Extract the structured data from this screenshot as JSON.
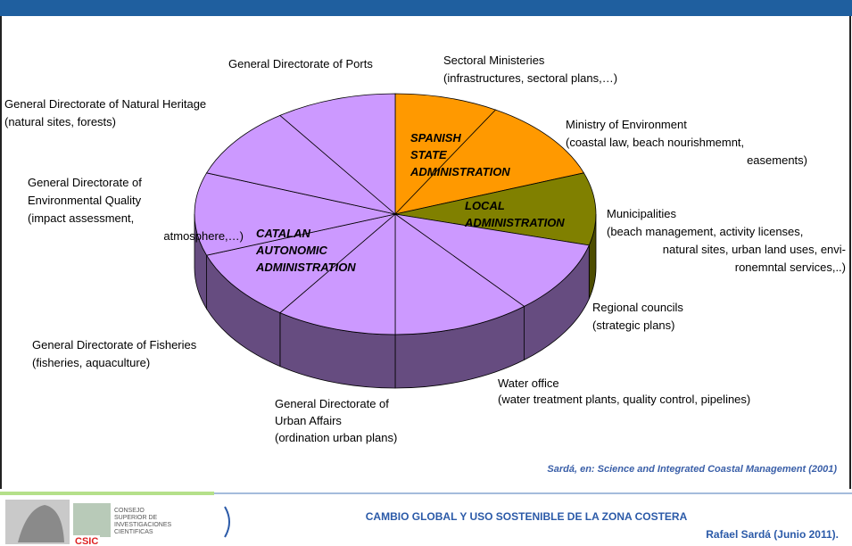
{
  "labels": [
    {
      "lines": [
        "General Directorate of Ports"
      ]
    },
    {
      "lines": [
        "Sectoral Ministeries",
        "(infrastructures, sectoral plans,…)"
      ]
    },
    {
      "lines": [
        "Ministry of Environment",
        "(coastal law, beach nourishmemnt,",
        "easements)"
      ]
    },
    {
      "lines": [
        "General Directorate of Natural Heritage",
        "(natural sites, forests)"
      ]
    },
    {
      "lines": [
        "General Directorate of",
        "Environmental Quality",
        "(impact assessment,",
        "atmosphere,…)"
      ]
    },
    {
      "lines": [
        "Municipalities",
        "(beach management, activity licenses,",
        "natural sites, urban land uses, envi-",
        "ronemntal services,..)"
      ]
    },
    {
      "lines": [
        "Regional councils",
        "(strategic plans)"
      ]
    },
    {
      "lines": [
        "General Directorate of Fisheries",
        "(fisheries, aquaculture)"
      ]
    },
    {
      "lines": [
        "Water office",
        "(water treatment plants, quality control, pipelines)"
      ]
    },
    {
      "lines": [
        "General Directorate of",
        "Urban Affairs",
        "(ordination urban plans)"
      ]
    }
  ],
  "regions": [
    {
      "lines": [
        "SPANISH",
        "STATE",
        "ADMINISTRATION"
      ]
    },
    {
      "lines": [
        "LOCAL",
        "ADMINISTRATION"
      ]
    },
    {
      "lines": [
        "CATALAN",
        "AUTONOMIC",
        "ADMINISTRATION"
      ]
    }
  ],
  "citation": "Sardá, en: Science and Integrated Coastal Management (2001)",
  "footer": {
    "title": "CAMBIO GLOBAL Y USO SOSTENIBLE DE LA ZONA COSTERA",
    "author": "Rafael Sardá (Junio 2011)."
  },
  "logo": {
    "lines": [
      "CONSEJO",
      "SUPERIOR DE",
      "INVESTIGACIONES",
      "CIENTIFICAS"
    ],
    "acronym": "CSIC"
  }
}
